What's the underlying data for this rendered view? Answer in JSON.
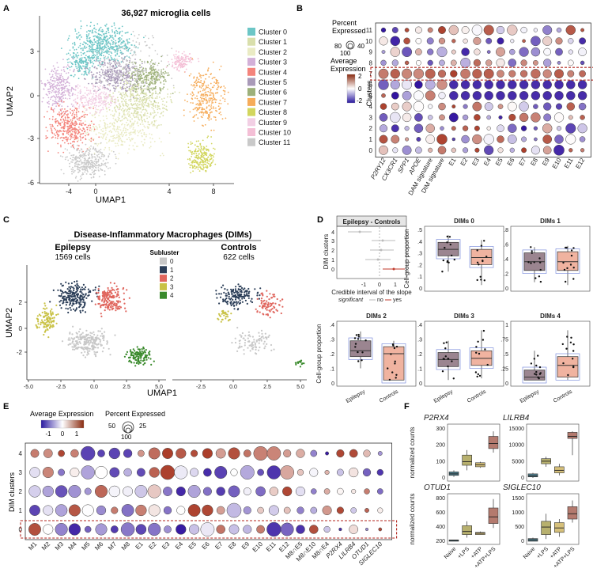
{
  "panels": {
    "A": {
      "label": "A",
      "title": "36,927 microglia cells",
      "xlabel": "UMAP1",
      "ylabel": "UMAP2",
      "xticks": [
        "-4",
        "0",
        "4",
        "8"
      ],
      "yticks": [
        "3",
        "0",
        "-3",
        "-6"
      ],
      "legend": [
        {
          "label": "Cluster 0",
          "color": "#6cc6c6"
        },
        {
          "label": "Cluster 1",
          "color": "#d9dfac"
        },
        {
          "label": "Cluster 2",
          "color": "#eaebc4"
        },
        {
          "label": "Cluster 3",
          "color": "#d3b0d8"
        },
        {
          "label": "Cluster 4",
          "color": "#f4847c"
        },
        {
          "label": "Cluster 5",
          "color": "#a99ab8"
        },
        {
          "label": "Cluster 6",
          "color": "#9db07a"
        },
        {
          "label": "Cluster 7",
          "color": "#f6ac5a"
        },
        {
          "label": "Cluster 8",
          "color": "#d2d65e"
        },
        {
          "label": "Cluster 9",
          "color": "#f2cfe4"
        },
        {
          "label": "Cluster 10",
          "color": "#f4bfd6"
        },
        {
          "label": "Cluster 11",
          "color": "#c9c9c9"
        }
      ]
    },
    "B": {
      "label": "B",
      "legend_pct_title": "Percent\nExpressed",
      "legend_pct_labels": [
        "40",
        "80",
        "100"
      ],
      "legend_avg_title": "Average\nExpression",
      "legend_avg_labels": [
        "2",
        "0",
        "-2"
      ],
      "ylabel": "Clusters",
      "rows": [
        "11",
        "10",
        "9",
        "8",
        "7",
        "6",
        "5",
        "4",
        "3",
        "2",
        "1",
        "0"
      ],
      "cols": [
        "P2RY12",
        "CX3CR1",
        "SPP1",
        "APOE",
        "DAM signature",
        "DIM signature",
        "E1",
        "E2",
        "E3",
        "E4",
        "E5",
        "E6",
        "E7",
        "E8",
        "E9",
        "E10",
        "E11",
        "E12"
      ]
    },
    "C": {
      "label": "C",
      "title": "Disease-Inflammatory Macrophages (DIMs)",
      "left_title": "Epilepsy",
      "left_count": "1569 cells",
      "right_title": "Controls",
      "right_count": "622 cells",
      "legend_title": "Subluster",
      "legend": [
        {
          "label": "0",
          "color": "#c8c8c8"
        },
        {
          "label": "1",
          "color": "#2b3e58"
        },
        {
          "label": "2",
          "color": "#e0665e"
        },
        {
          "label": "3",
          "color": "#c9c246"
        },
        {
          "label": "4",
          "color": "#3a8a2c"
        }
      ],
      "xlabel": "UMAP1",
      "ylabel": "UMAP2",
      "left_xticks": [
        "-5.0",
        "-2.5",
        "0.0",
        "2.5",
        "5.0"
      ],
      "right_xticks": [
        "-2.5",
        "0.0",
        "2.5",
        "5.0"
      ],
      "yticks": [
        "2",
        "0",
        "-2"
      ]
    },
    "D": {
      "label": "D",
      "forest_title": "Epilepsy - Controls",
      "forest_ylabel": "DIM clusters",
      "forest_xlabel": "Credible interval of the slope",
      "forest_xticks": [
        "-1",
        "0",
        "1"
      ],
      "forest_yticks": [
        "4",
        "3",
        "2",
        "1",
        "0"
      ],
      "sig_label": "significant",
      "sig_no": "no",
      "sig_yes": "yes",
      "ylabel": "Cell-group proportion",
      "groups": [
        "Epilepsy",
        "Controls"
      ],
      "boxes": [
        {
          "title": "DIMs 0",
          "yticks": [
            ".5",
            ".4",
            ".3",
            ".2",
            ".1",
            "0"
          ]
        },
        {
          "title": "DIMs 1",
          "yticks": [
            ".8",
            ".6",
            ".4",
            ".2",
            "0"
          ]
        },
        {
          "title": "DIMs 2",
          "yticks": [
            ".4",
            ".3",
            ".2",
            ".1",
            "0"
          ]
        },
        {
          "title": "DIMs 3",
          "yticks": [
            ".4",
            ".3",
            ".2",
            ".1",
            "0"
          ]
        },
        {
          "title": "DIMs 4",
          "yticks": [
            "1",
            ".75",
            ".5",
            ".25",
            "0"
          ]
        }
      ]
    },
    "E": {
      "label": "E",
      "legend_avg_title": "Average Expression",
      "legend_avg_labels": [
        "-1",
        "0",
        "1"
      ],
      "legend_pct_title": "Percent Expressed",
      "legend_pct_labels": [
        "25",
        "50",
        "100"
      ],
      "ylabel": "DIM clusters",
      "rows": [
        "4",
        "3",
        "2",
        "1",
        "0"
      ],
      "cols": [
        "M1",
        "M2",
        "M3",
        "M4",
        "M5",
        "M6",
        "M7",
        "M8",
        "E1",
        "E2",
        "E3",
        "E4",
        "E5",
        "E6",
        "E7",
        "E8",
        "E9",
        "E10",
        "E11",
        "E12",
        "M8∩E5",
        "M8∩E10",
        "M8∩E4",
        "P2RX4",
        "LILRB4",
        "OTUD1",
        "SIGLEC10"
      ]
    },
    "F": {
      "label": "F",
      "ylabel": "normalized counts",
      "conditions": [
        "Naive",
        "+LPS",
        "+ATP",
        "+ATP+LPS"
      ],
      "plots": [
        {
          "gene": "P2RX4",
          "yticks": [
            "300",
            "200",
            "100",
            "0"
          ]
        },
        {
          "gene": "LILRB4",
          "yticks": [
            "15000",
            "10000",
            "5000",
            "0"
          ]
        },
        {
          "gene": "OTUD1",
          "yticks": [
            "800",
            "600",
            "400",
            "200"
          ]
        },
        {
          "gene": "SIGLEC10",
          "yticks": [
            "1500",
            "1000",
            "500",
            "0"
          ]
        }
      ]
    }
  }
}
